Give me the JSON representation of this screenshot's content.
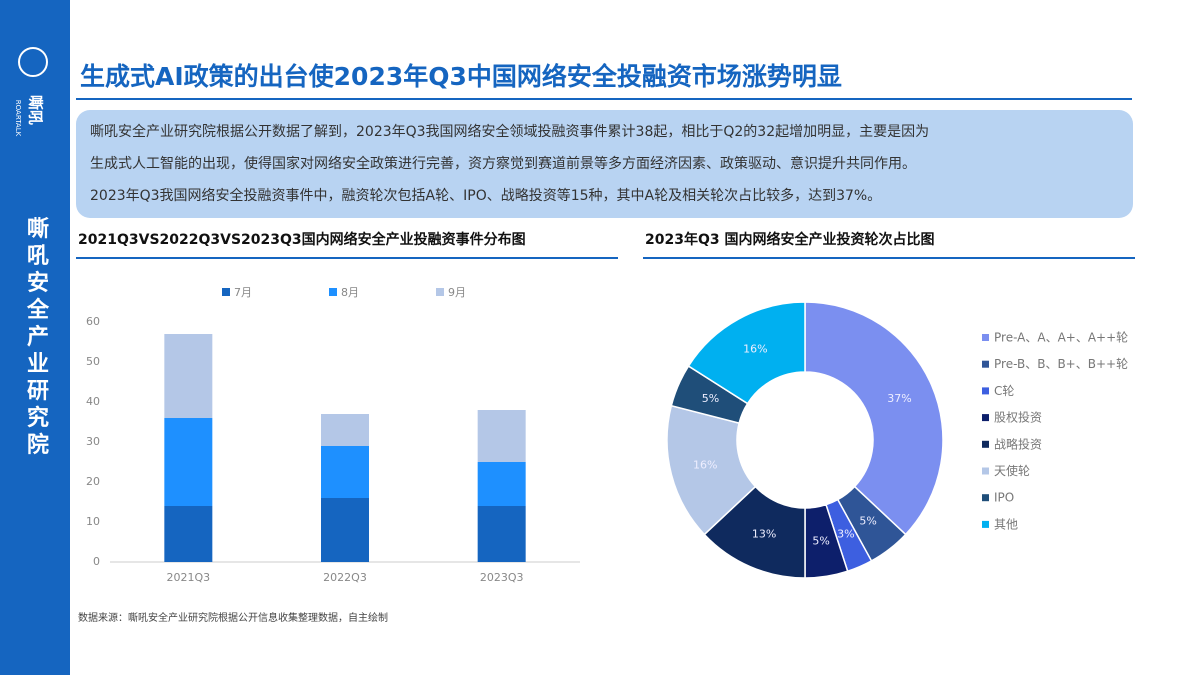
{
  "sidebar": {
    "logo": "嘶吼",
    "logo_en": "ROARTALK",
    "org": "嘶吼安全产业研究院"
  },
  "header": {
    "title": "生成式AI政策的出台使2023年Q3中国网络安全投融资市场涨势明显"
  },
  "summary": {
    "lines": [
      "嘶吼安全产业研究院根据公开数据了解到，2023年Q3我国网络安全领域投融资事件累计38起，相比于Q2的32起增加明显，主要是因为",
      "生成式人工智能的出现，使得国家对网络安全政策进行完善，资方察觉到赛道前景等多方面经济因素、政策驱动、意识提升共同作用。",
      "2023年Q3我国网络安全投融资事件中，融资轮次包括A轮、IPO、战略投资等15种，其中A轮及相关轮次占比较多，达到37%。"
    ]
  },
  "chart_data": [
    {
      "type": "bar",
      "stacked": true,
      "title": "2021Q3VS2022Q3VS2023Q3国内网络安全产业投融资事件分布图",
      "categories": [
        "2021Q3",
        "2022Q3",
        "2023Q3"
      ],
      "series": [
        {
          "name": "7月",
          "color": "#1565c0",
          "values": [
            14,
            16,
            14
          ]
        },
        {
          "name": "8月",
          "color": "#1e90ff",
          "values": [
            22,
            13,
            11
          ]
        },
        {
          "name": "9月",
          "color": "#b4c7e7",
          "values": [
            21,
            8,
            13
          ]
        }
      ],
      "ylim": [
        0,
        60
      ],
      "yticks": [
        0,
        10,
        20,
        30,
        40,
        50,
        60
      ],
      "grid": false
    },
    {
      "type": "pie",
      "donut": true,
      "title": "2023年Q3 国内网络安全产业投资轮次占比图",
      "categories": [
        "Pre-A、A、A+、A++轮",
        "Pre-B、B、B+、B++轮",
        "C轮",
        "股权投资",
        "战略投资",
        "天使轮",
        "IPO",
        "其他"
      ],
      "values": [
        37,
        5,
        3,
        5,
        13,
        16,
        5,
        16
      ],
      "value_labels": [
        "37%",
        "5%",
        "3%",
        "5%",
        "13%",
        "16%",
        "5%",
        "16%"
      ],
      "colors": [
        "#7b8ff0",
        "#2f5597",
        "#3d5fe0",
        "#0d1f6b",
        "#0f2a5e",
        "#b4c7e7",
        "#1f4e79",
        "#00b0f0"
      ]
    }
  ],
  "source": "数据来源：嘶吼安全产业研究院根据公开信息收集整理数据，自主绘制"
}
